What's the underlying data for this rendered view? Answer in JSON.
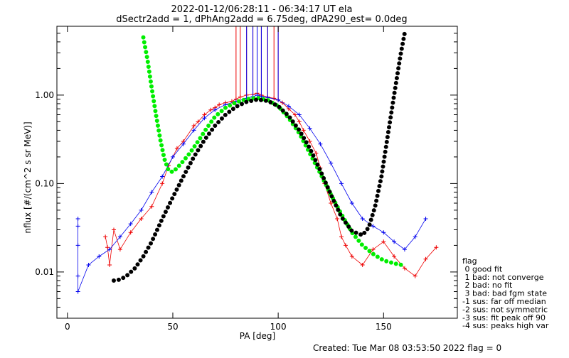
{
  "chart_data": {
    "type": "line",
    "title": "2022-01-12/06:28:11 - 06:34:17 UT ela",
    "subtitle": "dSectr2add = 1, dPhAng2add = 6.75deg, dPA290_est=   0.0deg",
    "xlabel": "PA [deg]",
    "ylabel": "nflux [#/(cm^2 s sr MeV)]",
    "xlim": [
      -5,
      185
    ],
    "ylim": [
      0.003,
      6
    ],
    "yscale": "log",
    "x_ticks": [
      0,
      50,
      100,
      150
    ],
    "x_tick_labels": [
      "0",
      "50",
      "100",
      "150"
    ],
    "y_ticks": [
      0.01,
      0.1,
      1.0
    ],
    "y_tick_labels": [
      "0.01",
      "0.10",
      "1.00"
    ],
    "grid": false,
    "legend_position": "right",
    "series": [
      {
        "color": "#00ee00",
        "style": "thick-dotted",
        "x": [
          36,
          38,
          40,
          42,
          44,
          46,
          48,
          50,
          52,
          55,
          58,
          62,
          66,
          70,
          75,
          80,
          85,
          90,
          95,
          100,
          105,
          110,
          115,
          120,
          125,
          130,
          135,
          140,
          145,
          150,
          155,
          160
        ],
        "y": [
          4.5,
          2.5,
          1.2,
          0.6,
          0.32,
          0.19,
          0.14,
          0.135,
          0.15,
          0.18,
          0.22,
          0.3,
          0.42,
          0.57,
          0.72,
          0.83,
          0.9,
          0.93,
          0.88,
          0.75,
          0.55,
          0.37,
          0.22,
          0.13,
          0.075,
          0.045,
          0.028,
          0.02,
          0.016,
          0.0135,
          0.0125,
          0.0118
        ]
      },
      {
        "color": "#000000",
        "style": "thick-dotted",
        "x": [
          22,
          25,
          28,
          32,
          36,
          40,
          45,
          50,
          55,
          60,
          65,
          70,
          75,
          80,
          85,
          90,
          95,
          100,
          105,
          110,
          115,
          120,
          125,
          130,
          135,
          140,
          143,
          146,
          149,
          152,
          155,
          158,
          160
        ],
        "y": [
          0.008,
          0.0082,
          0.009,
          0.011,
          0.015,
          0.022,
          0.04,
          0.07,
          0.12,
          0.2,
          0.31,
          0.45,
          0.6,
          0.74,
          0.84,
          0.89,
          0.86,
          0.75,
          0.58,
          0.4,
          0.25,
          0.14,
          0.075,
          0.042,
          0.029,
          0.026,
          0.032,
          0.055,
          0.12,
          0.35,
          1.0,
          2.8,
          5.0
        ]
      }
    ],
    "scatter_series": [
      {
        "color": "#ee0000",
        "marker": "+",
        "x": [
          18,
          19,
          20,
          22,
          25,
          30,
          35,
          40,
          45,
          48,
          52,
          55,
          60,
          62,
          65,
          68,
          70,
          72,
          75,
          78,
          80,
          82,
          85,
          88,
          90,
          92,
          95,
          98,
          100,
          102,
          105,
          108,
          110,
          112,
          115,
          118,
          120,
          122,
          125,
          128,
          130,
          132,
          135,
          140,
          145,
          150,
          155,
          160,
          165,
          170,
          175
        ],
        "y": [
          0.025,
          0.019,
          0.012,
          0.03,
          0.018,
          0.028,
          0.04,
          0.055,
          0.1,
          0.16,
          0.25,
          0.3,
          0.45,
          0.5,
          0.6,
          0.68,
          0.72,
          0.78,
          0.82,
          0.85,
          0.9,
          0.95,
          1.0,
          1.02,
          1.05,
          1.0,
          0.95,
          0.92,
          0.88,
          0.82,
          0.7,
          0.6,
          0.5,
          0.4,
          0.3,
          0.22,
          0.15,
          0.1,
          0.06,
          0.04,
          0.025,
          0.02,
          0.015,
          0.012,
          0.018,
          0.022,
          0.015,
          0.011,
          0.009,
          0.014,
          0.019
        ]
      },
      {
        "color": "#0000ee",
        "marker": "+",
        "x": [
          5,
          5,
          5,
          5,
          5,
          10,
          15,
          20,
          25,
          30,
          35,
          40,
          45,
          50,
          55,
          60,
          65,
          70,
          75,
          80,
          85,
          88,
          90,
          92,
          95,
          100,
          105,
          110,
          115,
          120,
          125,
          130,
          135,
          140,
          145,
          150,
          155,
          160,
          165,
          170
        ],
        "y": [
          0.04,
          0.033,
          0.02,
          0.009,
          0.006,
          0.012,
          0.015,
          0.018,
          0.025,
          0.035,
          0.05,
          0.08,
          0.12,
          0.2,
          0.28,
          0.4,
          0.55,
          0.68,
          0.78,
          0.85,
          0.92,
          0.96,
          1.0,
          0.97,
          0.94,
          0.88,
          0.75,
          0.6,
          0.42,
          0.28,
          0.17,
          0.1,
          0.06,
          0.04,
          0.033,
          0.028,
          0.022,
          0.018,
          0.025,
          0.04
        ]
      }
    ],
    "legend_entries": [
      "flag",
      " 0 good fit",
      " 1 bad: not converge",
      " 2 bad: no fit",
      " 3 bad: bad fgm state",
      "-1 sus: far off median",
      "-2 sus: not symmetric",
      "-3 sus: fit peak off 90",
      "-4 sus: peaks high var"
    ],
    "footer": "Created: Tue Mar 08 03:53:50 2022    flag = 0"
  }
}
